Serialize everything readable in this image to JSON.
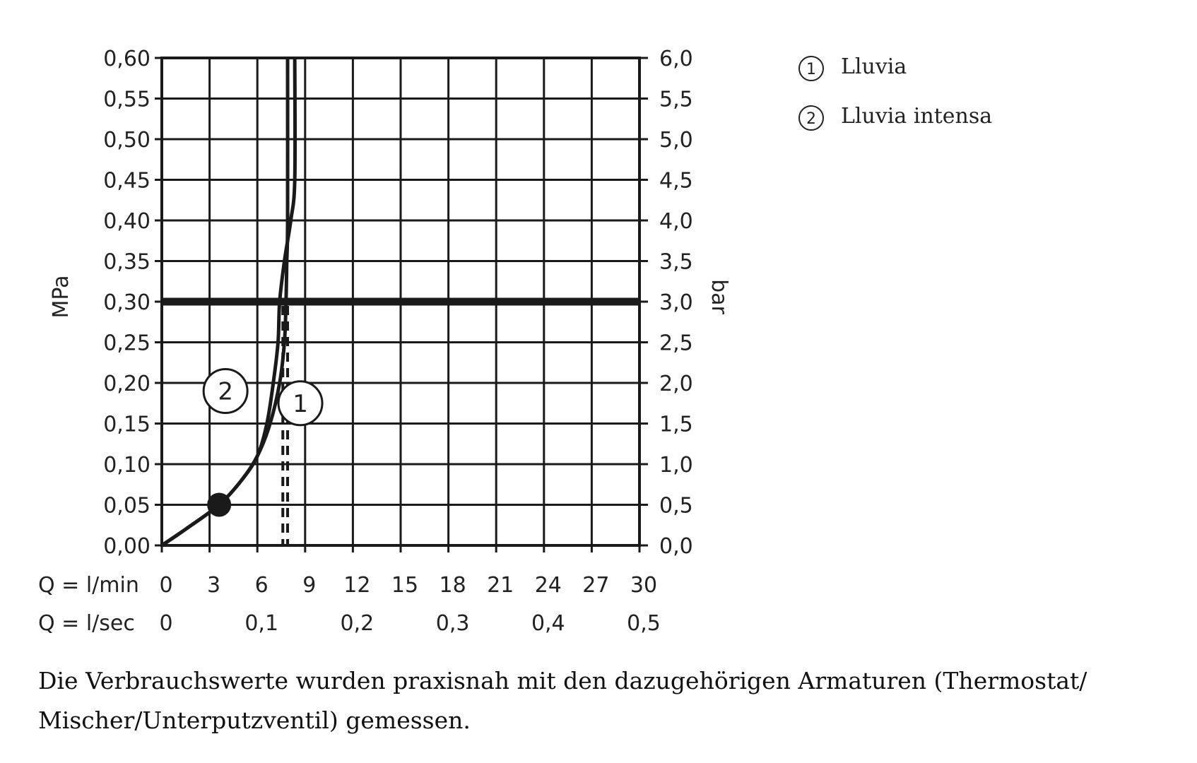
{
  "chart_data": {
    "type": "line",
    "title": "",
    "ylabel_left": "MPa",
    "ylabel_right": "bar",
    "x_rows": [
      {
        "label": "Q = l/min",
        "ticks": [
          "0",
          "3",
          "6",
          "9",
          "12",
          "15",
          "18",
          "21",
          "24",
          "27",
          "30"
        ]
      },
      {
        "label": "Q = l/sec",
        "ticks": [
          "0",
          "0,1",
          "0,2",
          "0,3",
          "0,4",
          "0,5"
        ]
      }
    ],
    "xlim": [
      0,
      30
    ],
    "ylim": [
      0,
      0.6
    ],
    "y_ticks_left": [
      "0,00",
      "0,05",
      "0,10",
      "0,15",
      "0,20",
      "0,25",
      "0,30",
      "0,35",
      "0,40",
      "0,45",
      "0,50",
      "0,55",
      "0,60"
    ],
    "y_ticks_right": [
      "0,0",
      "0,5",
      "1,0",
      "1,5",
      "2,0",
      "2,5",
      "3,0",
      "3,5",
      "4,0",
      "4,5",
      "5,0",
      "5,5",
      "6,0"
    ],
    "grid": true,
    "reference_line": {
      "y": 0.3
    },
    "guide_lines": [
      {
        "series": "1",
        "x": 7.9,
        "style": "dashed"
      },
      {
        "series": "2",
        "x": 7.6,
        "style": "dashed"
      }
    ],
    "series": [
      {
        "name": "1",
        "x": [
          0,
          1.5,
          3.6,
          5.0,
          6.0,
          6.8,
          7.4,
          7.7,
          7.8,
          7.85,
          7.9,
          7.9
        ],
        "y": [
          0,
          0.02,
          0.05,
          0.08,
          0.11,
          0.15,
          0.2,
          0.25,
          0.3,
          0.35,
          0.4,
          0.6
        ]
      },
      {
        "name": "2",
        "x": [
          0,
          1.5,
          3.6,
          5.0,
          6.0,
          6.6,
          7.0,
          7.3,
          7.4,
          7.7,
          8.1,
          8.35,
          8.35
        ],
        "y": [
          0,
          0.02,
          0.05,
          0.08,
          0.11,
          0.15,
          0.2,
          0.25,
          0.3,
          0.35,
          0.4,
          0.45,
          0.6
        ]
      }
    ],
    "points": [
      {
        "x": 3.6,
        "y": 0.05
      }
    ],
    "legend": [
      {
        "num": "1",
        "label": "Lluvia"
      },
      {
        "num": "2",
        "label": "Lluvia intensa"
      }
    ],
    "legend_position": "top-right"
  },
  "footnote": "Die Verbrauchswerte wurden praxisnah mit den dazugehörigen Armaturen (Thermostat/ Mischer/Unterputzventil) gemessen."
}
